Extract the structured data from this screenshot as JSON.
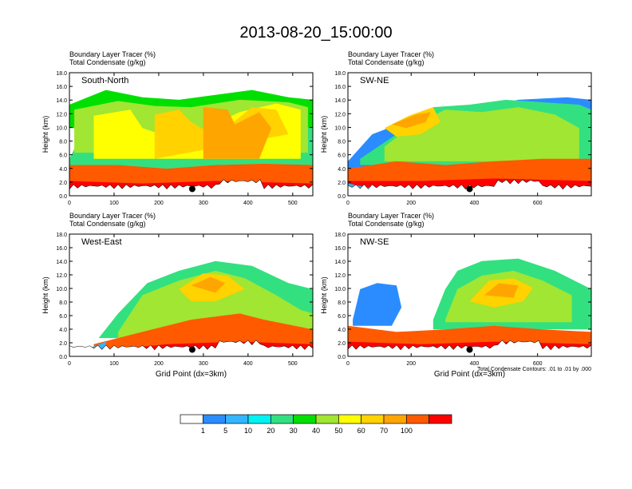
{
  "figure": {
    "title": "2013-08-20_15:00:00",
    "footnote": "Total Condensate Contours: .01 to .01 by .000"
  },
  "colorbar": {
    "colors": [
      "#ffffff",
      "#2a8cff",
      "#33b5ff",
      "#00f2f2",
      "#33e080",
      "#00e000",
      "#a0e632",
      "#ffff00",
      "#ffd200",
      "#ffa500",
      "#ff5a00",
      "#ff0000"
    ],
    "labels": [
      "1",
      "5",
      "10",
      "20",
      "30",
      "40",
      "50",
      "60",
      "70",
      "100"
    ]
  },
  "chart_data": [
    {
      "type": "heatmap",
      "panel_label": "South-North",
      "left_title": [
        "Boundary Layer Tracer   (%)",
        "Total Condensate   (g/kg)"
      ],
      "ylabel": "Height (km)",
      "xlabel": "",
      "ylim": [
        0,
        18
      ],
      "yticks": [
        "0.0",
        "2.0",
        "4.0",
        "6.0",
        "8.0",
        "10.0",
        "12.0",
        "14.0",
        "16.0",
        "18.0"
      ],
      "xlim": [
        0,
        545
      ],
      "xticks": [
        0,
        100,
        200,
        300,
        400,
        500
      ],
      "marker": {
        "x": 275,
        "y": 1.0
      }
    },
    {
      "type": "heatmap",
      "panel_label": "SW-NE",
      "left_title": [
        "Boundary Layer Tracer   (%)",
        "Total Condensate   (g/kg)"
      ],
      "ylabel": "Height (km)",
      "xlabel": "",
      "ylim": [
        0,
        18
      ],
      "yticks": [
        "0.0",
        "2.0",
        "4.0",
        "6.0",
        "8.0",
        "10.0",
        "12.0",
        "14.0",
        "16.0",
        "18.0"
      ],
      "xlim": [
        0,
        770
      ],
      "xticks": [
        0,
        200,
        400,
        600
      ],
      "marker": {
        "x": 385,
        "y": 1.0
      }
    },
    {
      "type": "heatmap",
      "panel_label": "West-East",
      "left_title": [
        "Boundary Layer Tracer   (%)",
        "Total Condensate   (g/kg)"
      ],
      "ylabel": "Height (km)",
      "xlabel": "Grid Point (dx=3km)",
      "ylim": [
        0,
        18
      ],
      "yticks": [
        "0.0",
        "2.0",
        "4.0",
        "6.0",
        "8.0",
        "10.0",
        "12.0",
        "14.0",
        "16.0",
        "18.0"
      ],
      "xlim": [
        0,
        545
      ],
      "xticks": [
        0,
        100,
        200,
        300,
        400,
        500
      ],
      "marker": {
        "x": 275,
        "y": 1.0
      }
    },
    {
      "type": "heatmap",
      "panel_label": "NW-SE",
      "left_title": [
        "Boundary Layer Tracer   (%)",
        "Total Condensate   (g/kg)"
      ],
      "ylabel": "Height (km)",
      "xlabel": "Grid Point (dx=3km)",
      "ylim": [
        0,
        18
      ],
      "yticks": [
        "0.0",
        "2.0",
        "4.0",
        "6.0",
        "8.0",
        "10.0",
        "12.0",
        "14.0",
        "16.0",
        "18.0"
      ],
      "xlim": [
        0,
        770
      ],
      "xticks": [
        0,
        200,
        400,
        600
      ],
      "marker": {
        "x": 385,
        "y": 1.0
      }
    }
  ]
}
